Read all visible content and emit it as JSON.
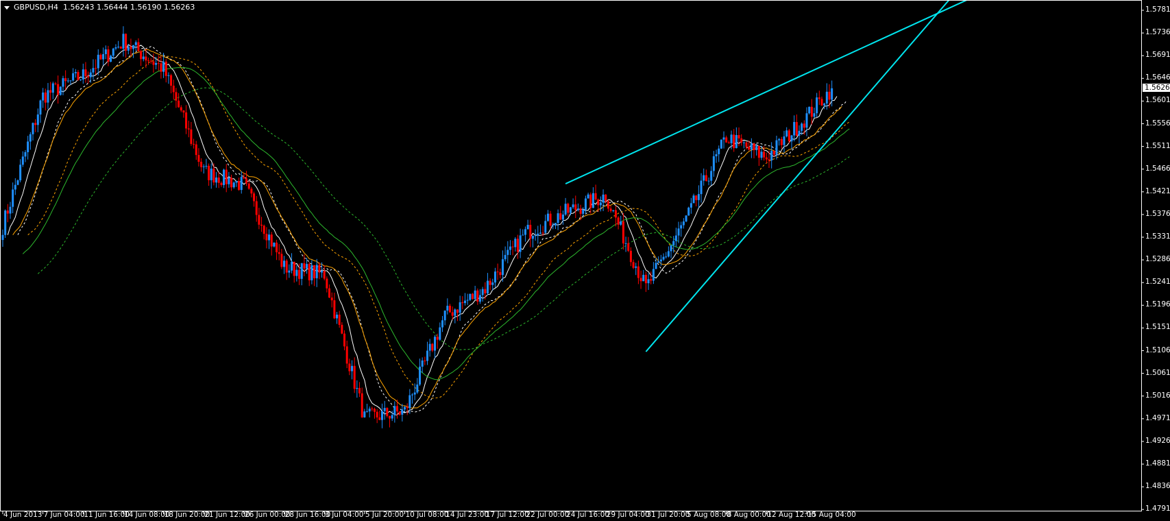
{
  "header": {
    "symbol": "GBPUSD,H4",
    "ohlc": "1.56243 1.56444 1.56190 1.56263"
  },
  "colors": {
    "background": "#000000",
    "bull_candle": "#1e90ff",
    "bear_candle": "#ff0000",
    "trendline": "#00e5ee",
    "ma_fast": "#ffffff",
    "ma_mid": "#ffa500",
    "ma_slow": "#2db82d",
    "axis": "#ffffff"
  },
  "chart_data": {
    "type": "candlestick",
    "title": "GBPUSD,H4",
    "current_price": "1.56263",
    "ylim": [
      1.4791,
      1.5781
    ],
    "y_ticks": [
      "1.57810",
      "1.57360",
      "1.56910",
      "1.56460",
      "1.56010",
      "1.55560",
      "1.55110",
      "1.54660",
      "1.54210",
      "1.53760",
      "1.53310",
      "1.52860",
      "1.52410",
      "1.51960",
      "1.51510",
      "1.51060",
      "1.50610",
      "1.50160",
      "1.49710",
      "1.49260",
      "1.48810",
      "1.48360",
      "1.47910"
    ],
    "x_ticks": [
      "4 Jun 2013",
      "7 Jun 04:00",
      "11 Jun 16:00",
      "14 Jun 08:00",
      "18 Jun 20:00",
      "21 Jun 12:00",
      "26 Jun 00:00",
      "28 Jun 16:00",
      "3 Jul 04:00",
      "5 Jul 20:00",
      "10 Jul 08:00",
      "14 Jul 23:00",
      "17 Jul 12:00",
      "22 Jul 00:00",
      "24 Jul 16:00",
      "29 Jul 04:00",
      "31 Jul 20:00",
      "5 Aug 08:00",
      "8 Aug 00:00",
      "12 Aug 12:00",
      "15 Aug 04:00"
    ],
    "approx_closes_at_ticks": [
      1.5353,
      1.5611,
      1.5652,
      1.572,
      1.5665,
      1.5461,
      1.5434,
      1.5271,
      1.5257,
      1.4972,
      1.4986,
      1.5176,
      1.523,
      1.5339,
      1.538,
      1.5414,
      1.523,
      1.5366,
      1.5529,
      1.5489,
      1.557
    ],
    "last_close": 1.56263,
    "grid": false,
    "moving_averages": [
      {
        "color": "#ffffff",
        "style": "solid"
      },
      {
        "color": "#ffffff",
        "style": "dashed"
      },
      {
        "color": "#ffa500",
        "style": "solid"
      },
      {
        "color": "#ffa500",
        "style": "dashed"
      },
      {
        "color": "#2db82d",
        "style": "solid"
      },
      {
        "color": "#2db82d",
        "style": "dashed"
      }
    ],
    "trendlines": [
      {
        "from": {
          "time": "24 Jul 16:00",
          "price": 1.5437
        },
        "through": {
          "time": "15 Aug 04:00",
          "price": 1.5656
        }
      },
      {
        "from": {
          "time": "31 Jul 20:00",
          "price": 1.5104
        },
        "through": {
          "time": "15 Aug 04:00",
          "price": 1.5474
        }
      }
    ]
  }
}
